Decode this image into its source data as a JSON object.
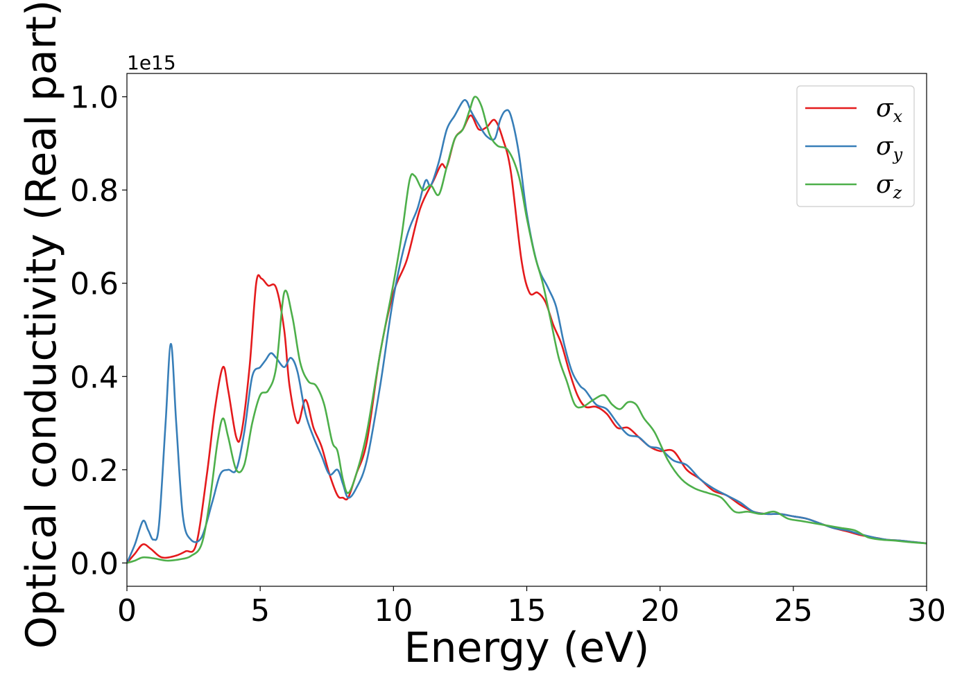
{
  "chart_data": {
    "type": "line",
    "title": "",
    "xlabel": "Energy (eV)",
    "ylabel": "Optical conductivity (Real part)",
    "y_offset_label": "1e15",
    "xlim": [
      0,
      30
    ],
    "ylim": [
      -0.05,
      1.05
    ],
    "x_ticks": [
      0,
      5,
      10,
      15,
      20,
      25,
      30
    ],
    "y_ticks": [
      0.0,
      0.2,
      0.4,
      0.6,
      0.8,
      1.0
    ],
    "x_tick_labels": [
      "0",
      "5",
      "10",
      "15",
      "20",
      "25",
      "30"
    ],
    "y_tick_labels": [
      "0.0",
      "0.2",
      "0.4",
      "0.6",
      "0.8",
      "1.0"
    ],
    "grid": false,
    "legend_position": "top-right",
    "series": [
      {
        "name": "σx",
        "symbol": "σ",
        "subscript": "x",
        "color": "#e41a1c",
        "x": [
          0,
          0.3,
          0.6,
          0.9,
          1.3,
          1.8,
          2.2,
          2.6,
          3.0,
          3.3,
          3.6,
          3.8,
          4.1,
          4.3,
          4.6,
          4.85,
          5.05,
          5.3,
          5.6,
          5.9,
          6.1,
          6.4,
          6.7,
          7.0,
          7.3,
          7.6,
          7.9,
          8.1,
          8.3,
          8.6,
          9.0,
          9.5,
          10.0,
          10.5,
          11.0,
          11.5,
          11.8,
          12.0,
          12.3,
          12.6,
          12.9,
          13.2,
          13.5,
          13.8,
          14.1,
          14.4,
          14.8,
          15.1,
          15.4,
          15.7,
          16.0,
          16.3,
          16.6,
          16.9,
          17.2,
          17.6,
          18.0,
          18.4,
          18.8,
          19.2,
          19.6,
          20.0,
          20.5,
          21.0,
          21.5,
          22.0,
          22.5,
          23.0,
          23.5,
          24.0,
          24.5,
          25.0,
          25.5,
          26.0,
          26.5,
          27.0,
          27.5,
          28.0,
          28.5,
          29.0,
          29.5,
          30.0
        ],
        "values": [
          0.0,
          0.02,
          0.04,
          0.03,
          0.012,
          0.015,
          0.025,
          0.04,
          0.19,
          0.33,
          0.42,
          0.37,
          0.27,
          0.28,
          0.42,
          0.6,
          0.61,
          0.595,
          0.59,
          0.5,
          0.38,
          0.3,
          0.35,
          0.29,
          0.25,
          0.19,
          0.145,
          0.14,
          0.14,
          0.19,
          0.26,
          0.45,
          0.58,
          0.65,
          0.76,
          0.82,
          0.855,
          0.85,
          0.91,
          0.93,
          0.96,
          0.93,
          0.935,
          0.95,
          0.91,
          0.84,
          0.65,
          0.58,
          0.58,
          0.56,
          0.51,
          0.47,
          0.41,
          0.36,
          0.335,
          0.335,
          0.32,
          0.29,
          0.29,
          0.27,
          0.25,
          0.24,
          0.24,
          0.2,
          0.18,
          0.155,
          0.145,
          0.125,
          0.11,
          0.105,
          0.105,
          0.1,
          0.095,
          0.085,
          0.075,
          0.068,
          0.06,
          0.055,
          0.05,
          0.048,
          0.045,
          0.042
        ]
      },
      {
        "name": "σy",
        "symbol": "σ",
        "subscript": "y",
        "color": "#377eb8",
        "x": [
          0,
          0.3,
          0.6,
          0.8,
          1.0,
          1.2,
          1.45,
          1.65,
          1.85,
          2.1,
          2.4,
          2.8,
          3.2,
          3.5,
          3.8,
          4.1,
          4.4,
          4.7,
          5.0,
          5.2,
          5.4,
          5.6,
          5.9,
          6.15,
          6.4,
          6.7,
          7.0,
          7.3,
          7.6,
          7.9,
          8.1,
          8.3,
          8.6,
          9.0,
          9.5,
          10.0,
          10.5,
          10.9,
          11.2,
          11.4,
          11.7,
          12.0,
          12.3,
          12.6,
          12.75,
          12.9,
          13.2,
          13.5,
          13.8,
          14.0,
          14.2,
          14.4,
          14.7,
          15.0,
          15.4,
          15.8,
          16.1,
          16.4,
          16.7,
          17.0,
          17.2,
          17.6,
          18.0,
          18.4,
          18.8,
          19.2,
          19.6,
          20.0,
          20.5,
          21.0,
          21.5,
          22.0,
          22.5,
          23.0,
          23.5,
          24.0,
          24.5,
          25.0,
          25.5,
          26.0,
          26.5,
          27.0,
          27.5,
          28.0,
          28.5,
          29.0,
          29.5,
          30.0
        ],
        "values": [
          0.0,
          0.04,
          0.09,
          0.07,
          0.05,
          0.08,
          0.3,
          0.47,
          0.3,
          0.1,
          0.05,
          0.055,
          0.13,
          0.19,
          0.2,
          0.2,
          0.28,
          0.4,
          0.42,
          0.435,
          0.45,
          0.44,
          0.42,
          0.44,
          0.41,
          0.32,
          0.27,
          0.23,
          0.19,
          0.2,
          0.17,
          0.14,
          0.16,
          0.22,
          0.38,
          0.57,
          0.7,
          0.76,
          0.82,
          0.81,
          0.86,
          0.93,
          0.96,
          0.99,
          0.99,
          0.97,
          0.94,
          0.915,
          0.91,
          0.95,
          0.97,
          0.96,
          0.88,
          0.75,
          0.64,
          0.59,
          0.55,
          0.47,
          0.41,
          0.38,
          0.37,
          0.34,
          0.33,
          0.3,
          0.275,
          0.27,
          0.25,
          0.245,
          0.22,
          0.21,
          0.18,
          0.16,
          0.145,
          0.13,
          0.11,
          0.105,
          0.105,
          0.1,
          0.095,
          0.085,
          0.075,
          0.07,
          0.062,
          0.055,
          0.05,
          0.048,
          0.045,
          0.042
        ]
      },
      {
        "name": "σz",
        "symbol": "σ",
        "subscript": "z",
        "color": "#4daf4a",
        "x": [
          0,
          0.3,
          0.6,
          1.0,
          1.5,
          2.0,
          2.4,
          2.8,
          3.1,
          3.4,
          3.6,
          3.8,
          4.1,
          4.4,
          4.7,
          5.0,
          5.3,
          5.6,
          5.9,
          6.2,
          6.5,
          6.8,
          7.1,
          7.4,
          7.7,
          7.9,
          8.1,
          8.3,
          8.6,
          9.0,
          9.5,
          10.0,
          10.3,
          10.6,
          10.8,
          11.1,
          11.4,
          11.7,
          12.0,
          12.3,
          12.6,
          12.85,
          13.05,
          13.3,
          13.6,
          13.9,
          14.3,
          14.7,
          15.0,
          15.3,
          15.6,
          15.9,
          16.2,
          16.5,
          16.8,
          17.1,
          17.5,
          17.9,
          18.2,
          18.5,
          18.8,
          19.1,
          19.4,
          19.8,
          20.3,
          20.8,
          21.3,
          21.8,
          22.3,
          22.8,
          23.3,
          23.8,
          24.3,
          24.8,
          25.3,
          25.8,
          26.3,
          26.8,
          27.3,
          27.8,
          28.3,
          28.8,
          29.3,
          30.0
        ],
        "values": [
          0.0,
          0.005,
          0.012,
          0.01,
          0.005,
          0.008,
          0.015,
          0.04,
          0.13,
          0.26,
          0.31,
          0.27,
          0.2,
          0.21,
          0.3,
          0.36,
          0.37,
          0.42,
          0.58,
          0.53,
          0.43,
          0.39,
          0.38,
          0.34,
          0.26,
          0.24,
          0.18,
          0.15,
          0.19,
          0.28,
          0.45,
          0.6,
          0.7,
          0.82,
          0.83,
          0.8,
          0.81,
          0.79,
          0.85,
          0.91,
          0.93,
          0.97,
          1.0,
          0.98,
          0.92,
          0.895,
          0.885,
          0.83,
          0.74,
          0.66,
          0.6,
          0.52,
          0.44,
          0.39,
          0.34,
          0.335,
          0.35,
          0.36,
          0.34,
          0.33,
          0.345,
          0.34,
          0.31,
          0.28,
          0.22,
          0.18,
          0.16,
          0.15,
          0.14,
          0.11,
          0.11,
          0.105,
          0.11,
          0.095,
          0.09,
          0.085,
          0.08,
          0.075,
          0.07,
          0.055,
          0.05,
          0.048,
          0.045,
          0.042
        ]
      }
    ]
  }
}
